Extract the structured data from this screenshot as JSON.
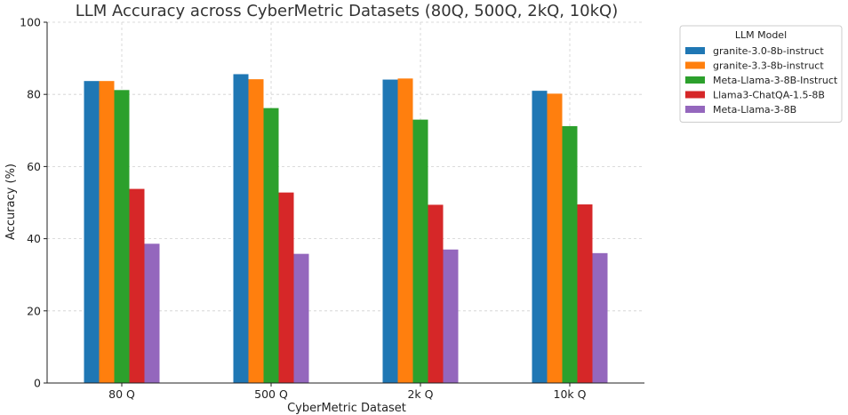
{
  "chart_data": {
    "type": "bar",
    "title": "LLM Accuracy across CyberMetric Datasets (80Q, 500Q, 2kQ, 10kQ)",
    "xlabel": "CyberMetric Dataset",
    "ylabel": "Accuracy (%)",
    "ylim": [
      0,
      100
    ],
    "yticks": [
      "0",
      "20",
      "40",
      "60",
      "80",
      "100"
    ],
    "grid": true,
    "categories": [
      "80 Q",
      "500 Q",
      "2k Q",
      "10k Q"
    ],
    "legend": {
      "title": "LLM Model",
      "placement": "outside-top-right"
    },
    "series": [
      {
        "name": "granite-3.0-8b-instruct",
        "color": "#1f77b4",
        "values": [
          83.7,
          85.6,
          84.1,
          81.0
        ]
      },
      {
        "name": "granite-3.3-8b-instruct",
        "color": "#ff7f0e",
        "values": [
          83.7,
          84.2,
          84.4,
          80.2
        ]
      },
      {
        "name": "Meta-Llama-3-8B-Instruct",
        "color": "#2ca02c",
        "values": [
          81.2,
          76.2,
          73.0,
          71.2
        ]
      },
      {
        "name": "Llama3-ChatQA-1.5-8B",
        "color": "#d62728",
        "values": [
          53.8,
          52.8,
          49.4,
          49.5
        ]
      },
      {
        "name": "Meta-Llama-3-8B",
        "color": "#9467bd",
        "values": [
          38.6,
          35.8,
          37.0,
          36.0
        ]
      }
    ]
  }
}
